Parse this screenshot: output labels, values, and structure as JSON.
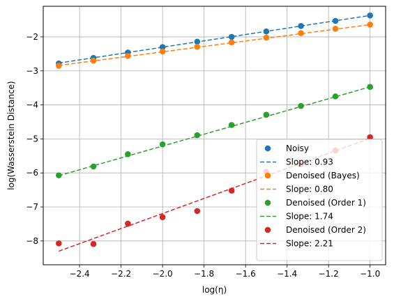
{
  "chart_data": {
    "type": "scatter",
    "xlabel": "log(η)",
    "ylabel": "log(Wasserstein Distance)",
    "xlim": [
      -2.575,
      -0.925
    ],
    "ylim": [
      -8.7,
      -1.1
    ],
    "xticks": [
      -2.4,
      -2.2,
      -2.0,
      -1.8,
      -1.6,
      -1.4,
      -1.2,
      -1.0
    ],
    "xtick_labels": [
      "−2.4",
      "−2.2",
      "−2.0",
      "−1.8",
      "−1.6",
      "−1.4",
      "−1.2",
      "−1.0"
    ],
    "yticks": [
      -8,
      -7,
      -6,
      -5,
      -4,
      -3,
      -2
    ],
    "ytick_labels": [
      "−8",
      "−7",
      "−6",
      "−5",
      "−4",
      "−3",
      "−2"
    ],
    "grid": true,
    "legend_position": "lower right",
    "x": [
      -2.5,
      -2.333,
      -2.167,
      -2.0,
      -1.833,
      -1.667,
      -1.5,
      -1.333,
      -1.167,
      -1.0
    ],
    "series": [
      {
        "name": "Noisy",
        "color": "#1f77b4",
        "values": [
          -2.78,
          -2.62,
          -2.46,
          -2.3,
          -2.14,
          -2.0,
          -1.84,
          -1.68,
          -1.53,
          -1.37
        ],
        "fit_label": "Slope: 0.93",
        "fit": [
          -2.77,
          -1.37
        ]
      },
      {
        "name": "Denoised (Bayes)",
        "color": "#ff7f0e",
        "values": [
          -2.85,
          -2.7,
          -2.56,
          -2.43,
          -2.29,
          -2.16,
          -2.02,
          -1.89,
          -1.76,
          -1.64
        ],
        "fit_label": "Slope: 0.80",
        "fit": [
          -2.84,
          -1.64
        ]
      },
      {
        "name": "Denoised (Order 1)",
        "color": "#2ca02c",
        "values": [
          -6.07,
          -5.81,
          -5.45,
          -5.16,
          -4.89,
          -4.59,
          -4.29,
          -4.03,
          -3.75,
          -3.47
        ],
        "fit_label": "Slope: 1.74",
        "fit": [
          -6.08,
          -3.47
        ]
      },
      {
        "name": "Denoised (Order 2)",
        "color": "#d62728",
        "values": [
          -8.07,
          -8.09,
          -7.49,
          -7.3,
          -7.12,
          -6.52,
          -5.97,
          -5.74,
          -5.34,
          -4.95
        ],
        "fit_label": "Slope: 2.21",
        "fit": [
          -8.3,
          -4.98
        ]
      }
    ]
  }
}
